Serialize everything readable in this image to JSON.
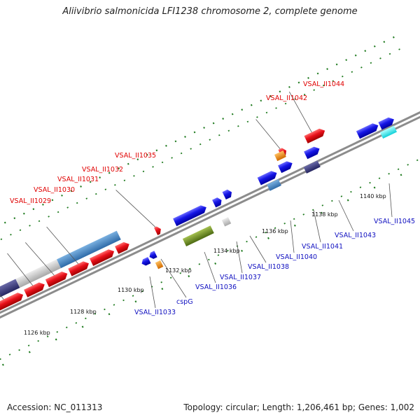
{
  "header": {
    "title": "Aliivibrio salmonicida LFI1238 chromosome 2, complete genome"
  },
  "footer": {
    "accession": "Accession: NC_011313",
    "stats": "Topology: circular; Length: 1,206,461 bp; Genes: 1,002"
  },
  "scale_labels": [
    "1126 kbp",
    "1128 kbp",
    "1130 kbp",
    "1132 kbp",
    "1134 kbp",
    "1136 kbp",
    "1138 kbp",
    "1140 kbp"
  ],
  "forward_genes": [
    {
      "label": "VSAL_II1029",
      "color": "#e00000"
    },
    {
      "label": "VSAL_II1030",
      "color": "#e00000"
    },
    {
      "label": "VSAL_II1031",
      "color": "#e00000"
    },
    {
      "label": "VSAL_II1032",
      "color": "#e00000"
    },
    {
      "label": "VSAL_II1035",
      "color": "#e00000"
    },
    {
      "label": "VSAL_II1042",
      "color": "#e00000"
    },
    {
      "label": "VSAL_II1044",
      "color": "#e00000"
    }
  ],
  "reverse_genes": [
    {
      "label": "VSAL_II1033",
      "color": "#1010c0"
    },
    {
      "label": "cspG",
      "color": "#1010c0"
    },
    {
      "label": "VSAL_II1036",
      "color": "#1010c0"
    },
    {
      "label": "VSAL_II1037",
      "color": "#1010c0"
    },
    {
      "label": "VSAL_II1038",
      "color": "#1010c0"
    },
    {
      "label": "VSAL_II1040",
      "color": "#1010c0"
    },
    {
      "label": "VSAL_II1041",
      "color": "#1010c0"
    },
    {
      "label": "VSAL_II1043",
      "color": "#1010c0"
    },
    {
      "label": "VSAL_II1045",
      "color": "#1010c0"
    }
  ],
  "colors": {
    "cds_forward": "#e8101a",
    "cds_reverse": "#1515e6",
    "gc_high": "#4a86c0",
    "gc_low": "#c8c8c8",
    "cog_dark": "#3a3a78",
    "cog_green": "#6a8c22",
    "trna": "#f08a10",
    "cyan": "#10e8e8",
    "backbone": "#8c8c8c",
    "tick": "#1e7a1e"
  }
}
